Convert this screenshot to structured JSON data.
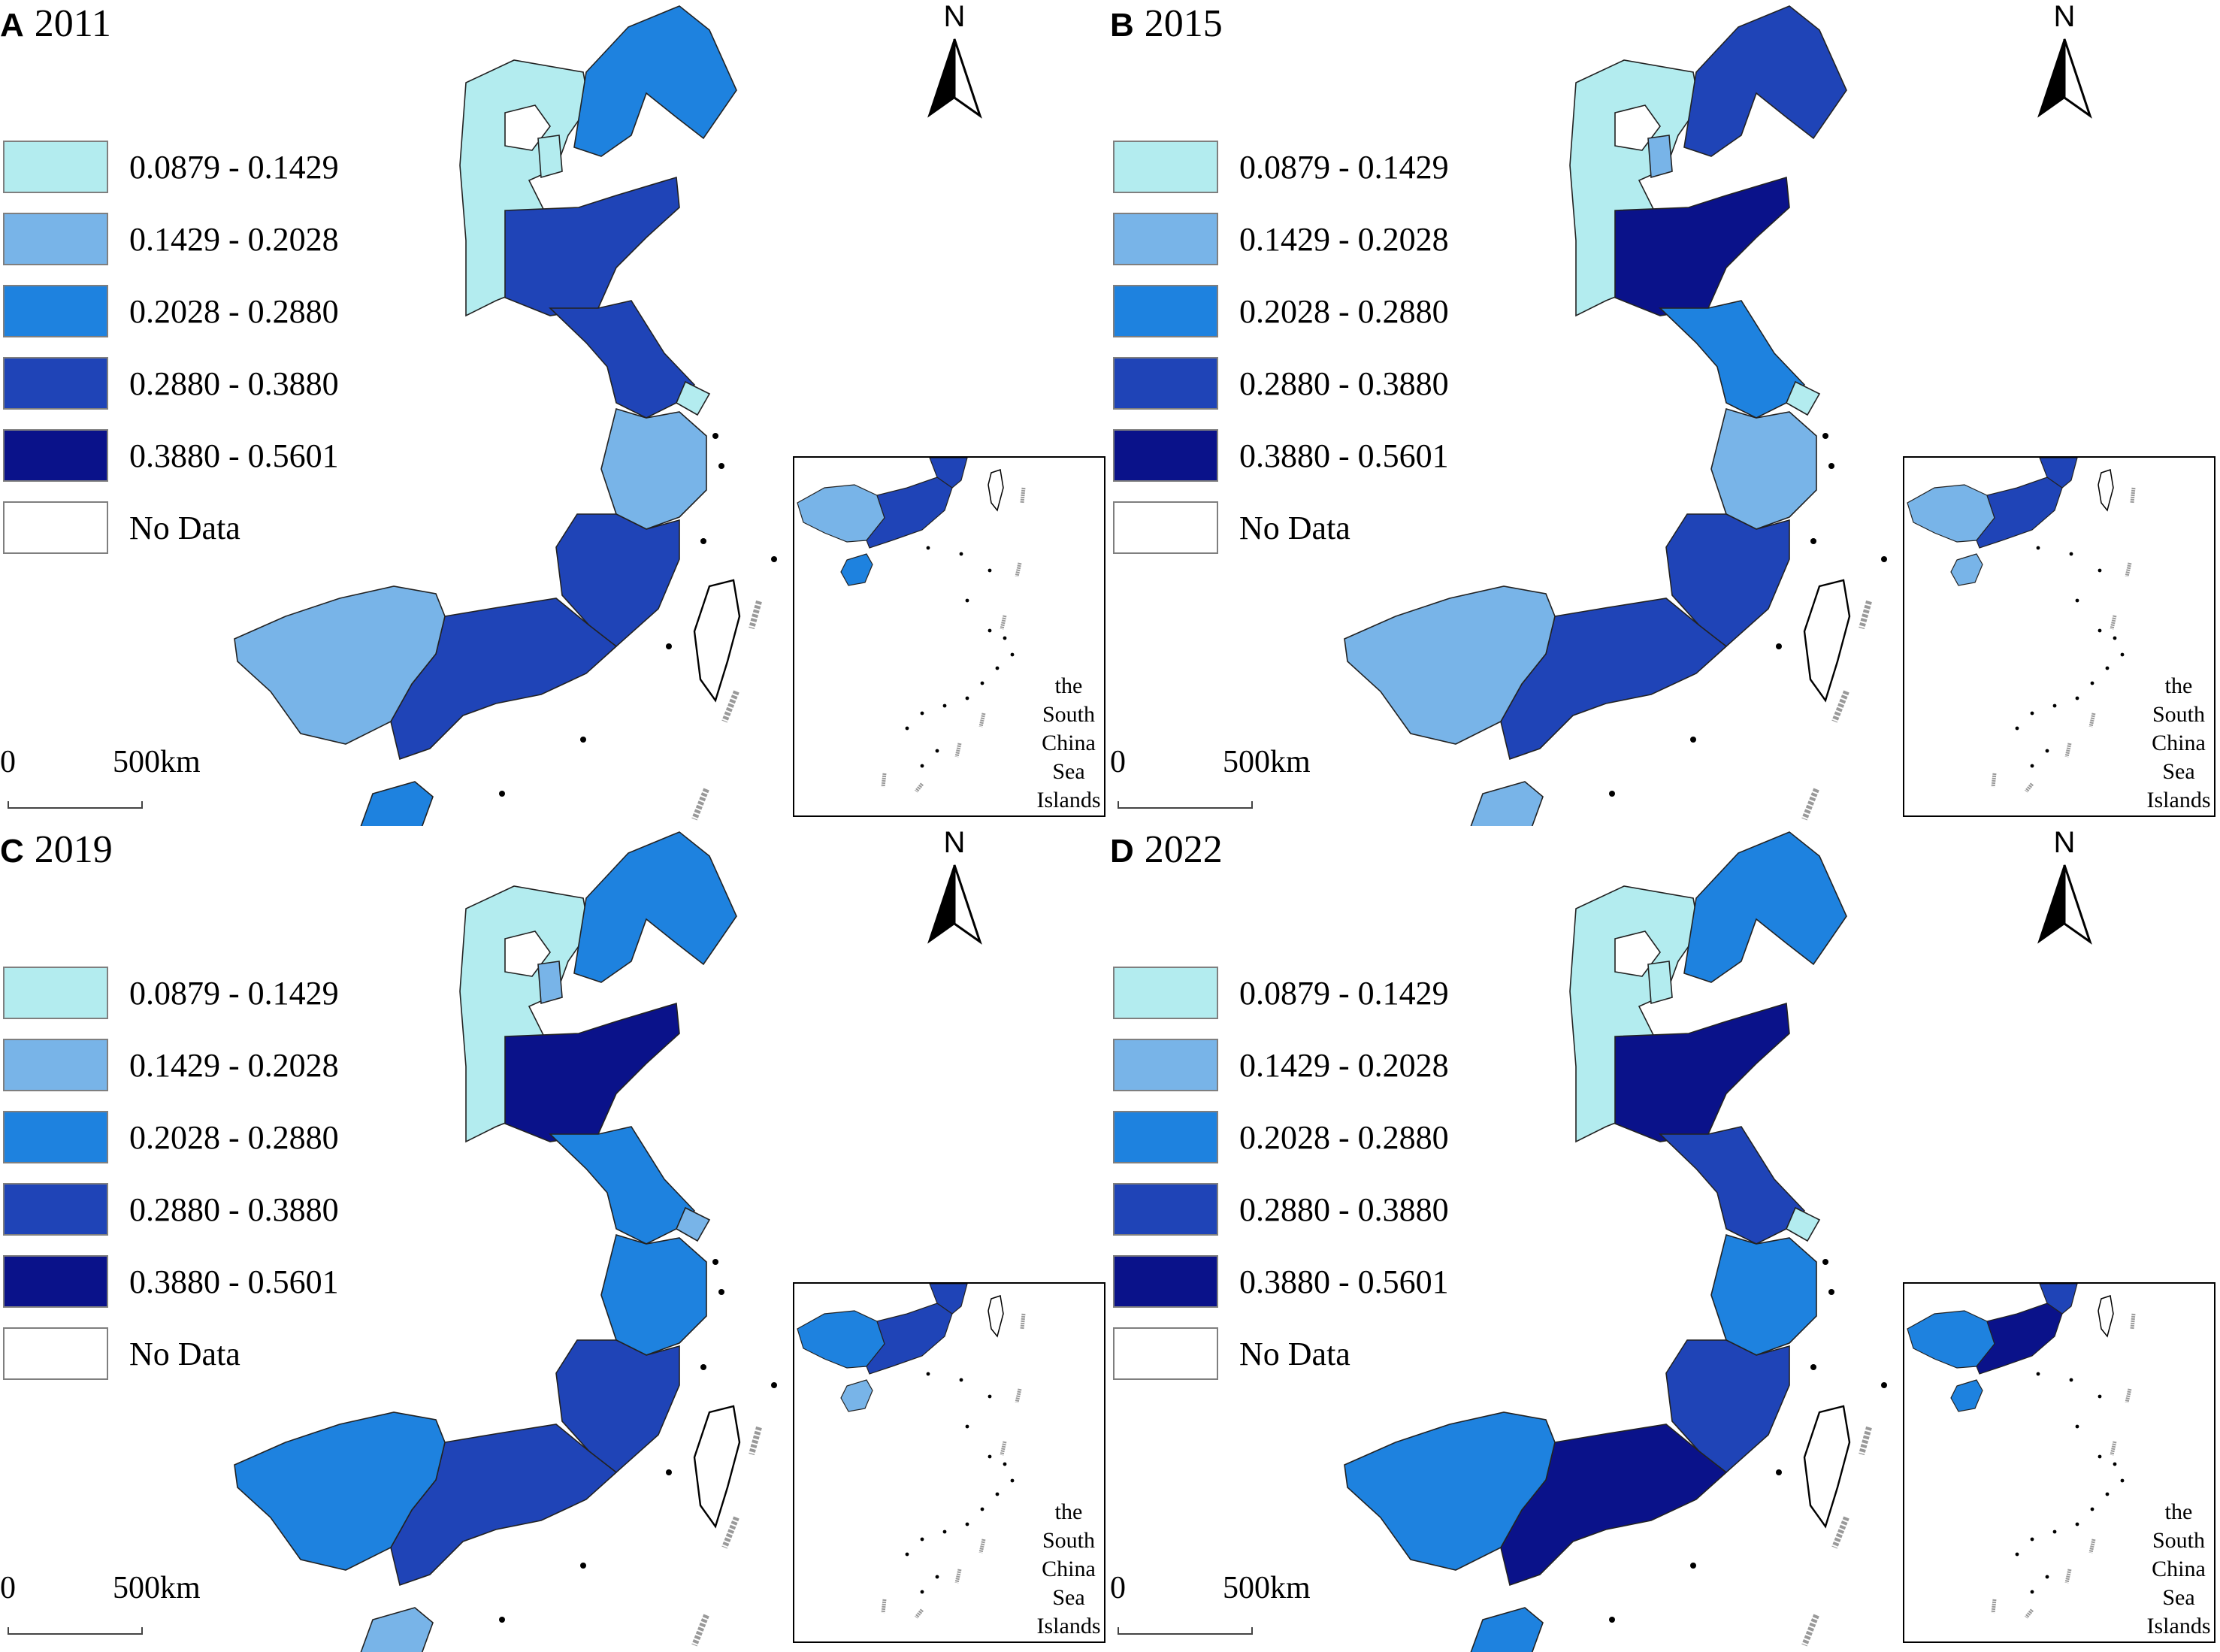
{
  "legend": {
    "classes": [
      {
        "label": "0.0879 - 0.1429",
        "color": "#b3ecef"
      },
      {
        "label": "0.1429 - 0.2028",
        "color": "#78b4e8"
      },
      {
        "label": "0.2028 - 0.2880",
        "color": "#1e82df"
      },
      {
        "label": "0.2880 - 0.3880",
        "color": "#1f44b7"
      },
      {
        "label": "0.3880 - 0.5601",
        "color": "#0a128a"
      },
      {
        "label": "No Data",
        "color": "#ffffff"
      }
    ]
  },
  "scale": {
    "zero": "0",
    "max": "500km"
  },
  "north_label": "N",
  "inset_label": "the\nSouth\nChina\nSea\nIslands",
  "panels": [
    {
      "letter": "A",
      "year": "2011",
      "classes": {
        "hebei": 0,
        "beijing": 5,
        "tianjin": 0,
        "liaoning": 2,
        "shandong": 3,
        "jiangsu": 3,
        "shanghai": 0,
        "zhejiang": 1,
        "fujian": 3,
        "guangdong": 3,
        "guangxi": 1,
        "hainan": 2
      }
    },
    {
      "letter": "B",
      "year": "2015",
      "classes": {
        "hebei": 0,
        "beijing": 5,
        "tianjin": 1,
        "liaoning": 3,
        "shandong": 4,
        "jiangsu": 2,
        "shanghai": 0,
        "zhejiang": 1,
        "fujian": 3,
        "guangdong": 3,
        "guangxi": 1,
        "hainan": 1
      }
    },
    {
      "letter": "C",
      "year": "2019",
      "classes": {
        "hebei": 0,
        "beijing": 5,
        "tianjin": 1,
        "liaoning": 2,
        "shandong": 4,
        "jiangsu": 2,
        "shanghai": 1,
        "zhejiang": 2,
        "fujian": 3,
        "guangdong": 3,
        "guangxi": 2,
        "hainan": 1
      }
    },
    {
      "letter": "D",
      "year": "2022",
      "classes": {
        "hebei": 0,
        "beijing": 5,
        "tianjin": 0,
        "liaoning": 2,
        "shandong": 4,
        "jiangsu": 3,
        "shanghai": 0,
        "zhejiang": 2,
        "fujian": 3,
        "guangdong": 4,
        "guangxi": 2,
        "hainan": 2
      }
    }
  ]
}
